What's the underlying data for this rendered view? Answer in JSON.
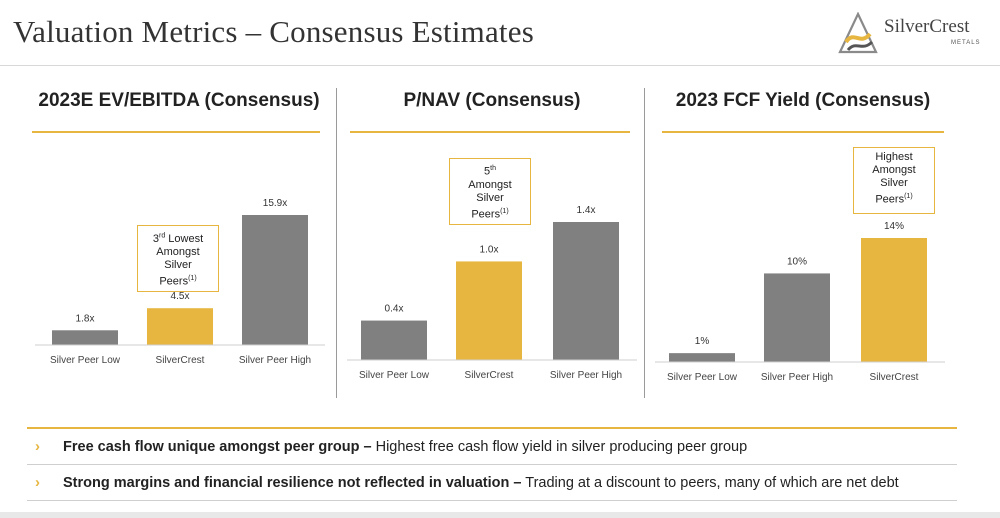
{
  "header": {
    "title": "Valuation Metrics – Consensus Estimates",
    "logo_name": "SilverCrest",
    "logo_sub": "METALS"
  },
  "colors": {
    "gold": "#e6b640",
    "gray": "#808080"
  },
  "panels": [
    {
      "title": "2023E EV/EBITDA (Consensus)",
      "callout": {
        "lines": [
          "3rd Lowest",
          "Amongst",
          "Silver",
          "Peers(1)"
        ]
      }
    },
    {
      "title": "P/NAV (Consensus)",
      "callout": {
        "lines": [
          "5th",
          "Amongst",
          "Silver",
          "Peers(1)"
        ]
      }
    },
    {
      "title": "2023 FCF Yield (Consensus)",
      "callout": {
        "lines": [
          "Highest",
          "Amongst",
          "Silver",
          "Peers(1)"
        ]
      }
    }
  ],
  "chart_data": [
    {
      "type": "bar",
      "title": "2023E EV/EBITDA (Consensus)",
      "categories": [
        "Silver Peer Low",
        "SilverCrest",
        "Silver Peer High"
      ],
      "values": [
        1.8,
        4.5,
        15.9
      ],
      "labels": [
        "1.8x",
        "4.5x",
        "15.9x"
      ],
      "highlight_index": 1,
      "ylim": [
        0,
        15.9
      ]
    },
    {
      "type": "bar",
      "title": "P/NAV (Consensus)",
      "categories": [
        "Silver Peer Low",
        "SilverCrest",
        "Silver Peer High"
      ],
      "values": [
        0.4,
        1.0,
        1.4
      ],
      "labels": [
        "0.4x",
        "1.0x",
        "1.4x"
      ],
      "highlight_index": 1,
      "ylim": [
        0,
        1.4
      ]
    },
    {
      "type": "bar",
      "title": "2023 FCF Yield (Consensus)",
      "categories": [
        "Silver Peer Low",
        "Silver Peer High",
        "SilverCrest"
      ],
      "values": [
        1,
        10,
        14
      ],
      "labels": [
        "1%",
        "10%",
        "14%"
      ],
      "highlight_index": 2,
      "ylim": [
        0,
        14
      ]
    }
  ],
  "bullets": [
    {
      "bold": "Free cash flow unique amongst peer group –",
      "text": " Highest free cash flow yield in silver producing peer group"
    },
    {
      "bold": "Strong margins and financial resilience not reflected in valuation –",
      "text": " Trading at a discount to peers, many of which are net debt"
    }
  ]
}
